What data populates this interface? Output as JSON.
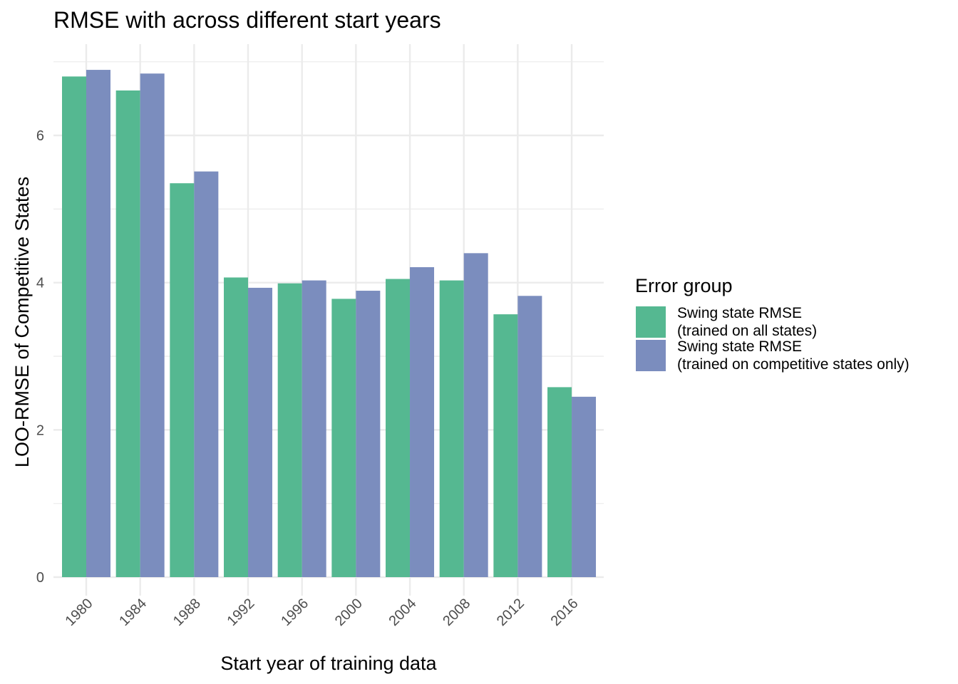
{
  "chart_data": {
    "type": "bar",
    "title": "RMSE with across different start years",
    "xlabel": "Start year of training data",
    "ylabel": "LOO-RMSE of Competitive States",
    "categories": [
      "1980",
      "1984",
      "1988",
      "1992",
      "1996",
      "2000",
      "2004",
      "2008",
      "2012",
      "2016"
    ],
    "series": [
      {
        "name_lines": [
          "Swing state RMSE",
          "(trained on all states)"
        ],
        "color": "#55b891",
        "values": [
          6.8,
          6.61,
          5.35,
          4.07,
          3.99,
          3.78,
          4.05,
          4.03,
          3.57,
          2.58
        ]
      },
      {
        "name_lines": [
          "Swing state RMSE",
          "(trained on competitive states only)"
        ],
        "color": "#7b8dbe",
        "values": [
          6.89,
          6.84,
          5.51,
          3.93,
          4.03,
          3.89,
          4.21,
          4.4,
          3.82,
          2.45
        ]
      }
    ],
    "yticks": [
      0,
      2,
      4,
      6
    ],
    "ylim": [
      0,
      7.0
    ],
    "grid": true,
    "legend": {
      "title": "Error group",
      "position": "right"
    }
  }
}
